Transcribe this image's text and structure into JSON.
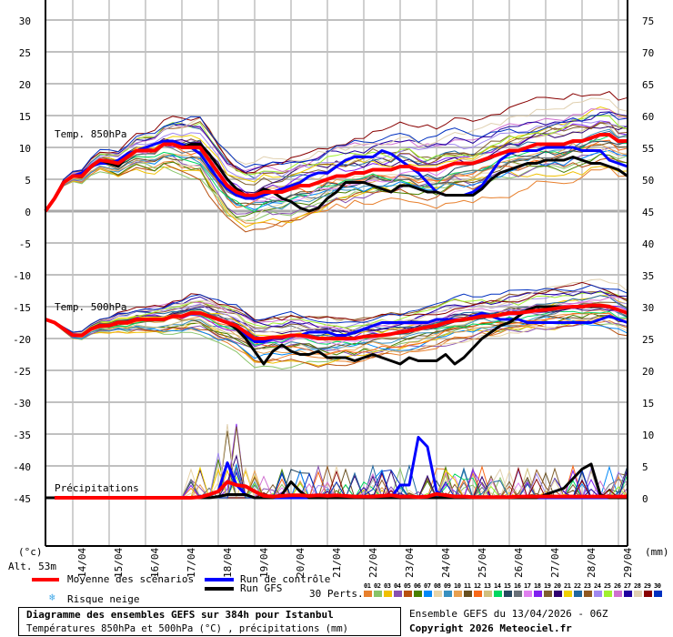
{
  "chart_data": {
    "type": "line",
    "title": "Diagramme des ensembles GEFS sur 384h pour Istanbul",
    "subtitle": "Températures 850hPa et 500hPa (°C) , précipitations (mm)",
    "run_info": "Ensemble GEFS du 13/04/2026 - 06Z",
    "copyright": "Copyright 2026 Meteociel.fr",
    "location_altitude": "Alt. 53m",
    "left_axis": {
      "label": "(°c)",
      "ticks": [
        30,
        25,
        20,
        15,
        10,
        5,
        0,
        -5,
        -10,
        -15,
        -20,
        -25,
        -30,
        -35,
        -40,
        -45
      ]
    },
    "right_axis": {
      "label": "(mm)",
      "ticks": [
        75,
        70,
        65,
        60,
        55,
        50,
        45,
        40,
        35,
        30,
        25,
        20,
        15,
        10,
        5,
        0
      ]
    },
    "x_ticks": [
      "14/04",
      "15/04",
      "16/04",
      "17/04",
      "18/04",
      "19/04",
      "20/04",
      "21/04",
      "22/04",
      "23/04",
      "24/04",
      "25/04",
      "26/04",
      "27/04",
      "28/04",
      "29/04"
    ],
    "panel_labels": [
      "Temp. 850hPa",
      "Temp. 500hPa",
      "Précipitations"
    ],
    "step_hours": 6,
    "series": [
      {
        "name": "Moyenne des scénarios (850hPa)",
        "color": "#ff0000",
        "width": 4,
        "values": [
          0,
          2,
          4.5,
          5.5,
          5.5,
          7,
          8,
          7.8,
          7.5,
          8.5,
          9.5,
          9.5,
          9.5,
          10.5,
          10.5,
          10,
          10,
          10,
          8,
          6,
          4,
          3,
          2.5,
          2.5,
          3,
          3,
          3,
          3.5,
          4,
          4,
          4.5,
          5,
          5.5,
          5.5,
          6,
          6,
          6.5,
          6.5,
          6.5,
          7,
          7,
          6.5,
          6.5,
          6.5,
          7,
          7.5,
          7.5,
          7.5,
          8,
          8.5,
          9,
          9.5,
          9.5,
          10,
          10.5,
          10.5,
          10.5,
          10.5,
          11,
          11,
          11.5,
          12,
          12,
          11,
          11
        ]
      },
      {
        "name": "Run de contrôle (850hPa)",
        "color": "#0000ff",
        "width": 3,
        "values": [
          0,
          2,
          4.5,
          5.5,
          6,
          7,
          7.5,
          7.5,
          8,
          9,
          9.5,
          10,
          10.5,
          11,
          11,
          10.5,
          10,
          9,
          7,
          5,
          3.5,
          2.5,
          2,
          2,
          2.5,
          3,
          3.5,
          4,
          4.5,
          5.5,
          6,
          6,
          7,
          8,
          8.5,
          8.5,
          8.5,
          9.5,
          9,
          8,
          7,
          6,
          4.5,
          3,
          2.5,
          2.5,
          2.5,
          3,
          4,
          6,
          8,
          9,
          9.5,
          9.5,
          9.5,
          10,
          10,
          10,
          10,
          9.5,
          9.5,
          9.5,
          8,
          7.5,
          7
        ]
      },
      {
        "name": "Run GFS (850hPa)",
        "color": "#000000",
        "width": 3,
        "values": [
          0,
          2,
          4.5,
          5.5,
          5.5,
          7,
          8,
          7.5,
          7,
          8.5,
          9.5,
          9.5,
          9.5,
          10.5,
          10.5,
          10,
          10.5,
          10.5,
          9,
          7,
          5,
          3.5,
          2.5,
          2.5,
          3.5,
          3,
          2,
          1.5,
          0.5,
          0,
          0.5,
          2,
          3,
          4.5,
          4.5,
          4.5,
          4,
          3.5,
          3,
          4,
          4,
          3.5,
          3,
          3,
          2.5,
          2.5,
          2.5,
          2.5,
          3.5,
          5,
          6,
          6.5,
          7,
          7.5,
          7.5,
          8,
          8,
          8,
          8.5,
          8,
          7.5,
          7.5,
          7,
          6.5,
          5.5
        ]
      },
      {
        "name": "Moyenne des scénarios (500hPa)",
        "color": "#ff0000",
        "width": 4,
        "values": [
          -17,
          -17.5,
          -18.5,
          -19.5,
          -19.5,
          -18.5,
          -18,
          -18,
          -17.5,
          -17.5,
          -17,
          -17,
          -17,
          -17,
          -16.5,
          -16.5,
          -16,
          -16,
          -16.5,
          -17,
          -17.5,
          -18,
          -19,
          -20,
          -20,
          -19.8,
          -19.8,
          -19.5,
          -19.5,
          -19.7,
          -20,
          -20,
          -20,
          -20,
          -20,
          -19.7,
          -19.6,
          -19.5,
          -19.3,
          -19,
          -18.8,
          -18.5,
          -18.2,
          -18,
          -17.5,
          -17.2,
          -17,
          -16.8,
          -16.5,
          -16.5,
          -16.3,
          -16,
          -16,
          -15.8,
          -15.6,
          -15.5,
          -15.3,
          -15.1,
          -15,
          -15,
          -14.8,
          -14.8,
          -15,
          -15.5,
          -16
        ]
      },
      {
        "name": "Run de contrôle (500hPa)",
        "color": "#0000ff",
        "width": 3,
        "values": [
          -17,
          -17.5,
          -18.5,
          -19.5,
          -19.5,
          -18.5,
          -18,
          -18,
          -17.5,
          -17.5,
          -17,
          -17,
          -17,
          -17,
          -16.5,
          -16.5,
          -16,
          -16,
          -16.5,
          -17,
          -17.5,
          -18.5,
          -19.5,
          -20.5,
          -20.5,
          -20,
          -20,
          -19.5,
          -19.5,
          -19,
          -19,
          -19,
          -19.5,
          -19.5,
          -19,
          -18.5,
          -18,
          -17.5,
          -17.5,
          -17.5,
          -17.5,
          -17.5,
          -17.5,
          -17,
          -17,
          -17,
          -17,
          -16.5,
          -16,
          -16.5,
          -17,
          -17,
          -17,
          -17.5,
          -17.5,
          -17.5,
          -17.5,
          -17.5,
          -17.5,
          -17.5,
          -17.5,
          -17,
          -16.5,
          -17,
          -17.5
        ]
      },
      {
        "name": "Run GFS (500hPa)",
        "color": "#000000",
        "width": 3,
        "values": [
          -17,
          -17.5,
          -18.5,
          -19.5,
          -19.5,
          -18.5,
          -18,
          -18,
          -17.5,
          -17.5,
          -17,
          -17,
          -17,
          -17,
          -16.5,
          -16.5,
          -16,
          -16,
          -16.5,
          -17,
          -17.5,
          -18.5,
          -20,
          -22,
          -24,
          -22,
          -21,
          -22,
          -22.5,
          -22.5,
          -22,
          -23,
          -23,
          -23,
          -23.5,
          -23,
          -22.5,
          -23,
          -23.5,
          -24,
          -23,
          -23.5,
          -23.5,
          -23.5,
          -22.5,
          -24,
          -23,
          -21.5,
          -20,
          -19,
          -18,
          -17.5,
          -16.5,
          -15.5,
          -15,
          -15,
          -15,
          -15,
          -15,
          -15,
          -15,
          -15,
          -15,
          -15.5,
          -16
        ]
      },
      {
        "name": "Moyenne des scénarios (précip. mm)",
        "color": "#ff0000",
        "width": 4,
        "values": [
          0,
          0,
          0,
          0,
          0,
          0,
          0,
          0,
          0,
          0,
          0,
          0,
          0,
          0,
          0,
          0,
          0,
          0.1,
          0.5,
          1,
          2.5,
          2,
          1.8,
          1,
          0.3,
          0.2,
          0.3,
          0.4,
          0.4,
          0.3,
          0.4,
          0.3,
          0.4,
          0.3,
          0.2,
          0.2,
          0.2,
          0.3,
          0.4,
          0.2,
          0.2,
          0.1,
          0.2,
          0.6,
          0.4,
          0.2,
          0.2,
          0.1,
          0.1,
          0.1,
          0.1,
          0.1,
          0.2,
          0.2,
          0.2,
          0.2,
          0.2,
          0.2,
          0.2,
          0.2,
          0.2,
          0.2,
          0.2,
          0.2,
          0.2
        ]
      },
      {
        "name": "Run de contrôle (précip. mm)",
        "color": "#0000ff",
        "width": 3,
        "values": [
          0,
          0,
          0,
          0,
          0,
          0,
          0,
          0,
          0,
          0,
          0,
          0,
          0,
          0,
          0,
          0,
          0,
          0,
          0.5,
          1,
          5.5,
          2,
          0.5,
          0,
          0,
          0,
          0,
          0,
          0,
          0,
          0,
          0,
          0,
          0,
          0,
          0,
          0,
          0,
          0,
          2,
          2,
          9.5,
          8,
          1,
          0,
          0,
          0,
          0,
          0,
          0,
          0,
          0,
          0,
          0,
          0,
          0,
          0,
          0,
          0,
          0,
          0,
          0,
          0,
          0,
          0
        ]
      },
      {
        "name": "Run GFS (précip. mm)",
        "color": "#000000",
        "width": 3,
        "values": [
          0,
          0,
          0,
          0,
          0,
          0,
          0,
          0,
          0,
          0,
          0,
          0,
          0,
          0,
          0,
          0,
          0,
          0,
          0,
          0.2,
          0.5,
          0.5,
          0.5,
          0,
          0,
          0,
          0.5,
          2.5,
          1,
          0,
          0,
          0,
          0,
          0,
          0,
          0,
          0,
          0,
          0,
          0,
          0,
          0,
          0,
          0,
          0,
          0,
          0,
          0,
          0,
          0,
          0,
          0,
          0,
          0,
          0,
          0.5,
          1,
          1.5,
          3,
          4.5,
          5.3,
          0.5,
          0,
          0,
          0
        ]
      }
    ],
    "members_count": 30,
    "ylim_left": [
      -50,
      32
    ],
    "grid": true
  },
  "legend": {
    "mean_label": "Moyenne des scénarios",
    "control_label": "Run de contrôle",
    "gfs_label": "Run GFS",
    "snow_label": "Risque neige",
    "perts_label": "30 Perts.",
    "members": [
      {
        "id": "01",
        "color": "#e8802d"
      },
      {
        "id": "02",
        "color": "#88c468"
      },
      {
        "id": "03",
        "color": "#f0c000"
      },
      {
        "id": "04",
        "color": "#8850b0"
      },
      {
        "id": "05",
        "color": "#b85010"
      },
      {
        "id": "06",
        "color": "#4a8000"
      },
      {
        "id": "07",
        "color": "#0088f8"
      },
      {
        "id": "08",
        "color": "#e8d4a8"
      },
      {
        "id": "09",
        "color": "#3890c0"
      },
      {
        "id": "10",
        "color": "#e8a050"
      },
      {
        "id": "11",
        "color": "#685020"
      },
      {
        "id": "12",
        "color": "#f86818"
      },
      {
        "id": "13",
        "color": "#d0c080"
      },
      {
        "id": "14",
        "color": "#00d860"
      },
      {
        "id": "15",
        "color": "#284860"
      },
      {
        "id": "16",
        "color": "#687078"
      },
      {
        "id": "17",
        "color": "#e080f0"
      },
      {
        "id": "18",
        "color": "#8020f0"
      },
      {
        "id": "19",
        "color": "#806030"
      },
      {
        "id": "20",
        "color": "#300070"
      },
      {
        "id": "21",
        "color": "#f0d000"
      },
      {
        "id": "22",
        "color": "#2068a0"
      },
      {
        "id": "23",
        "color": "#905820"
      },
      {
        "id": "24",
        "color": "#a088f0"
      },
      {
        "id": "25",
        "color": "#a0f030"
      },
      {
        "id": "26",
        "color": "#d070d0"
      },
      {
        "id": "27",
        "color": "#2000a0"
      },
      {
        "id": "28",
        "color": "#e0d0b0"
      },
      {
        "id": "29",
        "color": "#880000"
      },
      {
        "id": "30",
        "color": "#0030c0"
      }
    ]
  }
}
